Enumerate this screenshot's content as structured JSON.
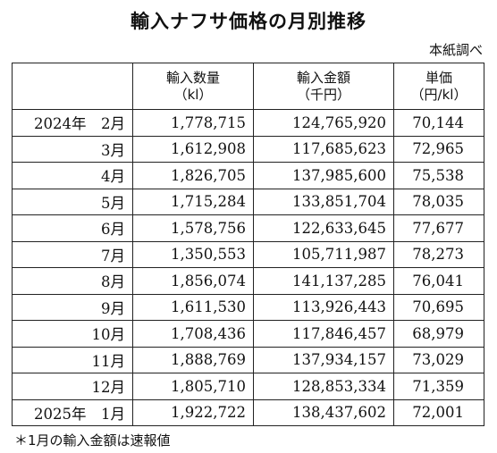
{
  "title": "輸入ナフサ価格の月別推移",
  "source": "本紙調べ",
  "columns": [
    {
      "label": "",
      "unit": ""
    },
    {
      "label": "輸入数量",
      "unit": "（kl）"
    },
    {
      "label": "輸入金額",
      "unit": "（千円）"
    },
    {
      "label": "単価",
      "unit": "（円/kl）"
    }
  ],
  "rows": [
    {
      "month": "2024年　2月",
      "volume": "1,778,715",
      "amount": "124,765,920",
      "price": "70,144"
    },
    {
      "month": "3月",
      "volume": "1,612,908",
      "amount": "117,685,623",
      "price": "72,965"
    },
    {
      "month": "4月",
      "volume": "1,826,705",
      "amount": "137,985,600",
      "price": "75,538"
    },
    {
      "month": "5月",
      "volume": "1,715,284",
      "amount": "133,851,704",
      "price": "78,035"
    },
    {
      "month": "6月",
      "volume": "1,578,756",
      "amount": "122,633,645",
      "price": "77,677"
    },
    {
      "month": "7月",
      "volume": "1,350,553",
      "amount": "105,711,987",
      "price": "78,273"
    },
    {
      "month": "8月",
      "volume": "1,856,074",
      "amount": "141,137,285",
      "price": "76,041"
    },
    {
      "month": "9月",
      "volume": "1,611,530",
      "amount": "113,926,443",
      "price": "70,695"
    },
    {
      "month": "10月",
      "volume": "1,708,436",
      "amount": "117,846,457",
      "price": "68,979"
    },
    {
      "month": "11月",
      "volume": "1,888,769",
      "amount": "137,934,157",
      "price": "73,029"
    },
    {
      "month": "12月",
      "volume": "1,805,710",
      "amount": "128,853,334",
      "price": "71,359"
    },
    {
      "month": "2025年　1月",
      "volume": "1,922,722",
      "amount": "138,437,602",
      "price": "72,001"
    }
  ],
  "footnote": "＊1月の輸入金額は速報値"
}
